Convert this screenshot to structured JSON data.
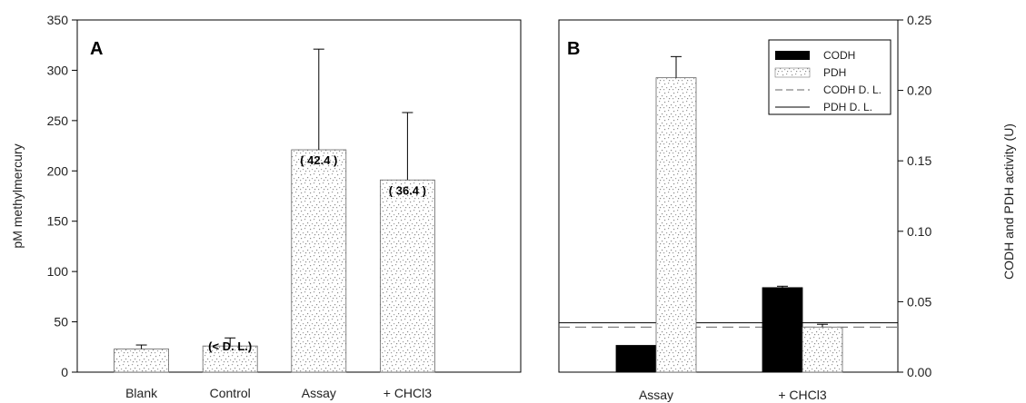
{
  "chart_data": [
    {
      "panel": "A",
      "type": "bar",
      "title": "",
      "ylabel": "pM methylmercury",
      "xlabel": "",
      "ylim": [
        0,
        350
      ],
      "yticks": [
        0,
        50,
        100,
        150,
        200,
        250,
        300,
        350
      ],
      "categories": [
        "Blank",
        "Control",
        "Assay",
        "+ CHCl3"
      ],
      "values": [
        23,
        26,
        221,
        191
      ],
      "error_upper": [
        27,
        34,
        321,
        258
      ],
      "data_labels": [
        "",
        "(< D. L.)",
        "( 42.4 )",
        "( 36.4 )"
      ],
      "grid": false,
      "colors": {
        "dotted_bar": "#bdbdbd",
        "axis": "#000000"
      }
    },
    {
      "panel": "B",
      "type": "bar",
      "title": "",
      "ylabel": "CODH and PDH activity (U)",
      "xlabel": "",
      "ylim": [
        0,
        0.25
      ],
      "yticks": [
        "0.00",
        "0.05",
        "0.10",
        "0.15",
        "0.20",
        "0.25"
      ],
      "categories": [
        "Assay",
        "+ CHCl3"
      ],
      "series": [
        {
          "name": "CODH",
          "values": [
            0.019,
            0.06
          ],
          "error_upper": [
            0.019,
            0.061
          ],
          "color": "#000000"
        },
        {
          "name": "PDH",
          "values": [
            0.209,
            0.032
          ],
          "error_upper": [
            0.224,
            0.034
          ],
          "color": "#bdbdbd"
        }
      ],
      "reference_lines": [
        {
          "name": "CODH D. L.",
          "value": 0.032,
          "style": "dashed"
        },
        {
          "name": "PDH D. L.",
          "value": 0.035,
          "style": "solid"
        }
      ],
      "legend": [
        "CODH",
        "PDH",
        "CODH D. L.",
        "PDH D. L."
      ],
      "legend_placement": "top-right",
      "grid": false
    }
  ]
}
